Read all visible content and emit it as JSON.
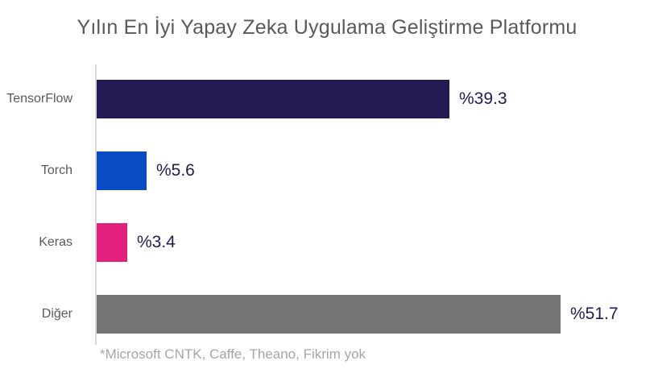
{
  "title": "Yılın En İyi Yapay Zeka Uygulama Geliştirme Platformu",
  "footnote": "*Microsoft CNTK, Caffe, Theano, Fikrim yok",
  "colors": {
    "title_text": "#595959",
    "category_label": "#595959",
    "value_label": "#221a52",
    "axis_line": "#d9d9d9",
    "footnote_text": "#a6a6a6",
    "background": "#ffffff"
  },
  "chart_data": {
    "type": "bar",
    "orientation": "horizontal",
    "title": "Yılın En İyi Yapay Zeka Uygulama Geliştirme Platformu",
    "categories": [
      "TensorFlow",
      "Torch",
      "Keras",
      "Diğer"
    ],
    "values": [
      39.3,
      5.6,
      3.4,
      51.7
    ],
    "value_labels": [
      "%39.3",
      "%5.6",
      "%3.4",
      "%51.7"
    ],
    "bar_colors": [
      "#221a52",
      "#0a4bc4",
      "#e2217e",
      "#767576"
    ],
    "xlim": [
      0,
      60
    ],
    "grid": false,
    "legend": false,
    "footnote": "*Microsoft CNTK, Caffe, Theano, Fikrim yok",
    "rows": [
      {
        "category": "TensorFlow",
        "value": 39.3,
        "label": "%39.3",
        "color": "#221a52"
      },
      {
        "category": "Torch",
        "value": 5.6,
        "label": "%5.6",
        "color": "#0a4bc4"
      },
      {
        "category": "Keras",
        "value": 3.4,
        "label": "%3.4",
        "color": "#e2217e"
      },
      {
        "category": "Diğer",
        "value": 51.7,
        "label": "%51.7",
        "color": "#767576"
      }
    ]
  }
}
